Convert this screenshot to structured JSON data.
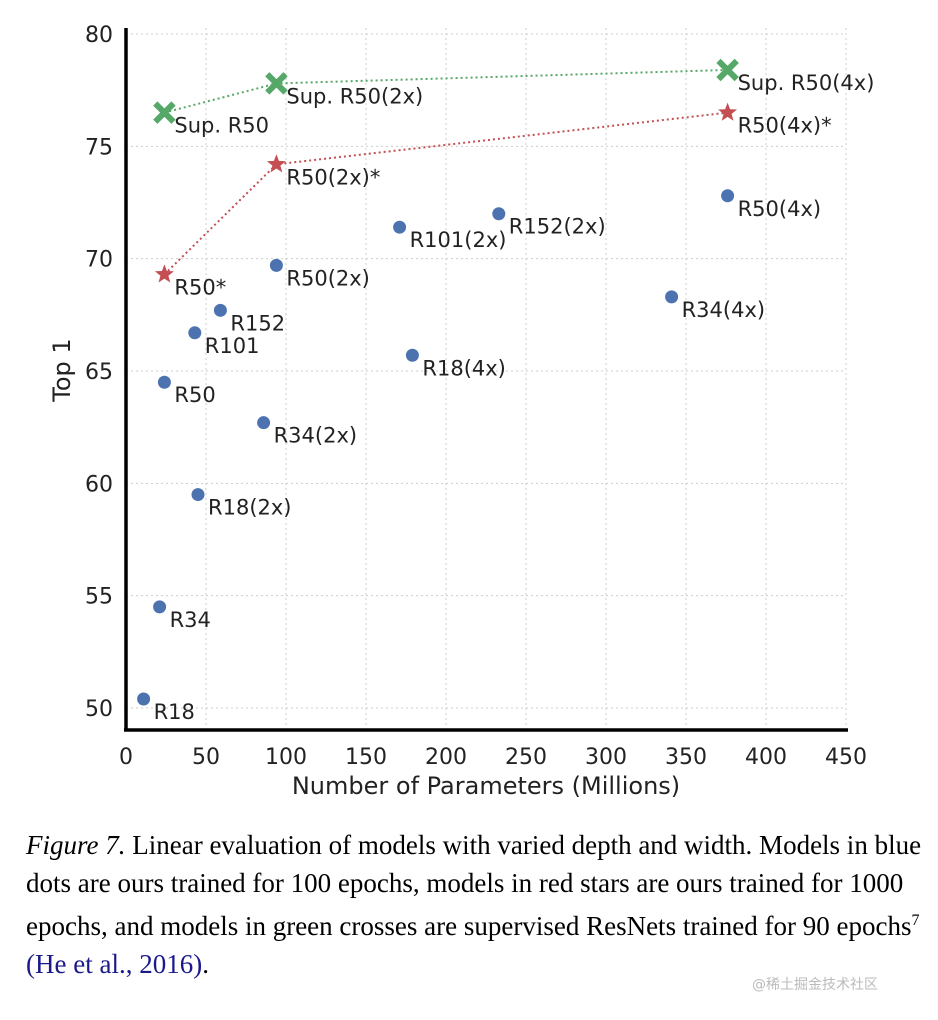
{
  "chart_data": {
    "type": "scatter",
    "title": "",
    "xlabel": "Number of Parameters (Millions)",
    "ylabel": "Top 1",
    "xlim": [
      0,
      450
    ],
    "ylim": [
      50,
      80
    ],
    "xticks": [
      "0",
      "50",
      "100",
      "150",
      "200",
      "250",
      "300",
      "350",
      "400",
      "450"
    ],
    "yticks": [
      "50",
      "55",
      "60",
      "65",
      "70",
      "75",
      "80"
    ],
    "grid": true,
    "series": [
      {
        "name": "ours, 100 epochs",
        "marker": "circle",
        "color": "#4c72b0",
        "connected": false,
        "points": [
          {
            "label": "R18",
            "x": 11,
            "y": 50.4
          },
          {
            "label": "R34",
            "x": 21,
            "y": 54.5
          },
          {
            "label": "R50",
            "x": 24,
            "y": 64.5
          },
          {
            "label": "R101",
            "x": 43,
            "y": 66.7
          },
          {
            "label": "R152",
            "x": 59,
            "y": 67.7
          },
          {
            "label": "R18(2x)",
            "x": 45,
            "y": 59.5
          },
          {
            "label": "R34(2x)",
            "x": 86,
            "y": 62.7
          },
          {
            "label": "R50(2x)",
            "x": 94,
            "y": 69.7
          },
          {
            "label": "R101(2x)",
            "x": 171,
            "y": 71.4
          },
          {
            "label": "R152(2x)",
            "x": 233,
            "y": 72.0
          },
          {
            "label": "R18(4x)",
            "x": 179,
            "y": 65.7
          },
          {
            "label": "R34(4x)",
            "x": 341,
            "y": 68.3
          },
          {
            "label": "R50(4x)",
            "x": 376,
            "y": 72.8
          }
        ]
      },
      {
        "name": "ours, 1000 epochs",
        "marker": "star",
        "color": "#c44e52",
        "connected": true,
        "points": [
          {
            "label": "R50*",
            "x": 24,
            "y": 69.3
          },
          {
            "label": "R50(2x)*",
            "x": 94,
            "y": 74.2
          },
          {
            "label": "R50(4x)*",
            "x": 376,
            "y": 76.5
          }
        ]
      },
      {
        "name": "supervised, 90 epochs",
        "marker": "cross",
        "color": "#55a868",
        "connected": true,
        "points": [
          {
            "label": "Sup. R50",
            "x": 24,
            "y": 76.5
          },
          {
            "label": "Sup. R50(2x)",
            "x": 94,
            "y": 77.8
          },
          {
            "label": "Sup. R50(4x)",
            "x": 376,
            "y": 78.4
          }
        ]
      }
    ]
  },
  "caption": {
    "figure_label": "Figure 7.",
    "text": " Linear evaluation of models with varied depth and width. Models in blue dots are ours trained for 100 epochs, models in red stars are ours trained for 1000 epochs, and models in green crosses are supervised ResNets trained for 90 epochs",
    "footnote_mark": "7",
    "citation": "(He et al., 2016)",
    "end": "."
  },
  "watermark": "@稀土掘金技术社区"
}
